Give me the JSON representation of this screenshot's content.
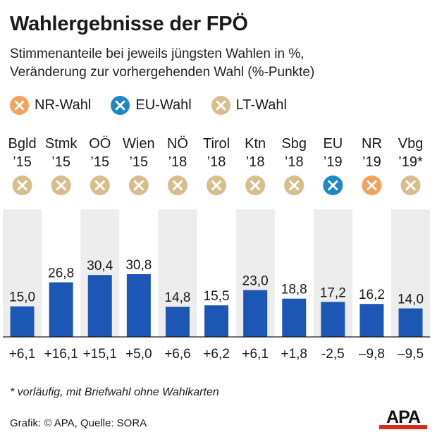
{
  "title": "Wahlergebnisse der FPÖ",
  "subtitle_line1": "Stimmenanteile bei jeweils jüngsten Wahlen in %,",
  "subtitle_line2": "Veränderung zur vorhergehenden Wahl (%-Punkte)",
  "legend": [
    {
      "label": "NR-Wahl",
      "icon": "x-circle-icon",
      "color": "#f3a25c"
    },
    {
      "label": "EU-Wahl",
      "icon": "x-circle-icon",
      "color": "#1d88c6"
    },
    {
      "label": "LT-Wahl",
      "icon": "x-circle-icon",
      "color": "#d8be8c"
    }
  ],
  "colors": {
    "bar": "#1d57b6",
    "column_shade": "#ededed",
    "NR": "#f3a25c",
    "EU": "#1d88c6",
    "LT": "#d8be8c",
    "logo_red": "#d62d1f"
  },
  "chart_data": {
    "type": "bar",
    "categories": [
      "Bgld",
      "Stmk",
      "OÖ",
      "Wien",
      "NÖ",
      "Tirol",
      "Ktn",
      "Sbg",
      "EU",
      "NR",
      "Vbg"
    ],
    "years": [
      "’15",
      "’15",
      "’15",
      "’15",
      "’18",
      "’18",
      "’18",
      "’18",
      "’19",
      "’19",
      "’19*"
    ],
    "election_type": [
      "LT",
      "LT",
      "LT",
      "LT",
      "LT",
      "LT",
      "LT",
      "LT",
      "EU",
      "NR",
      "LT"
    ],
    "values": [
      15.0,
      26.8,
      30.4,
      30.8,
      14.8,
      15.5,
      23.0,
      18.8,
      17.2,
      16.2,
      14.0
    ],
    "value_labels": [
      "15,0",
      "26,8",
      "30,4",
      "30,8",
      "14,8",
      "15,5",
      "23,0",
      "18,8",
      "17,2",
      "16,2",
      "14,0"
    ],
    "change_labels": [
      "+6,1",
      "+16,1",
      "+15,1",
      "+5,0",
      "+6,6",
      "+6,2",
      "+6,1",
      "+1,8",
      "-2,5",
      "–9,8",
      "–9,5"
    ],
    "ylim": [
      0,
      30.8
    ]
  },
  "footnote": "* vorläufig, mit Briefwahl ohne Wahlkarten",
  "source": "Grafik: © APA, Quelle: SORA",
  "logo_text": "APA"
}
